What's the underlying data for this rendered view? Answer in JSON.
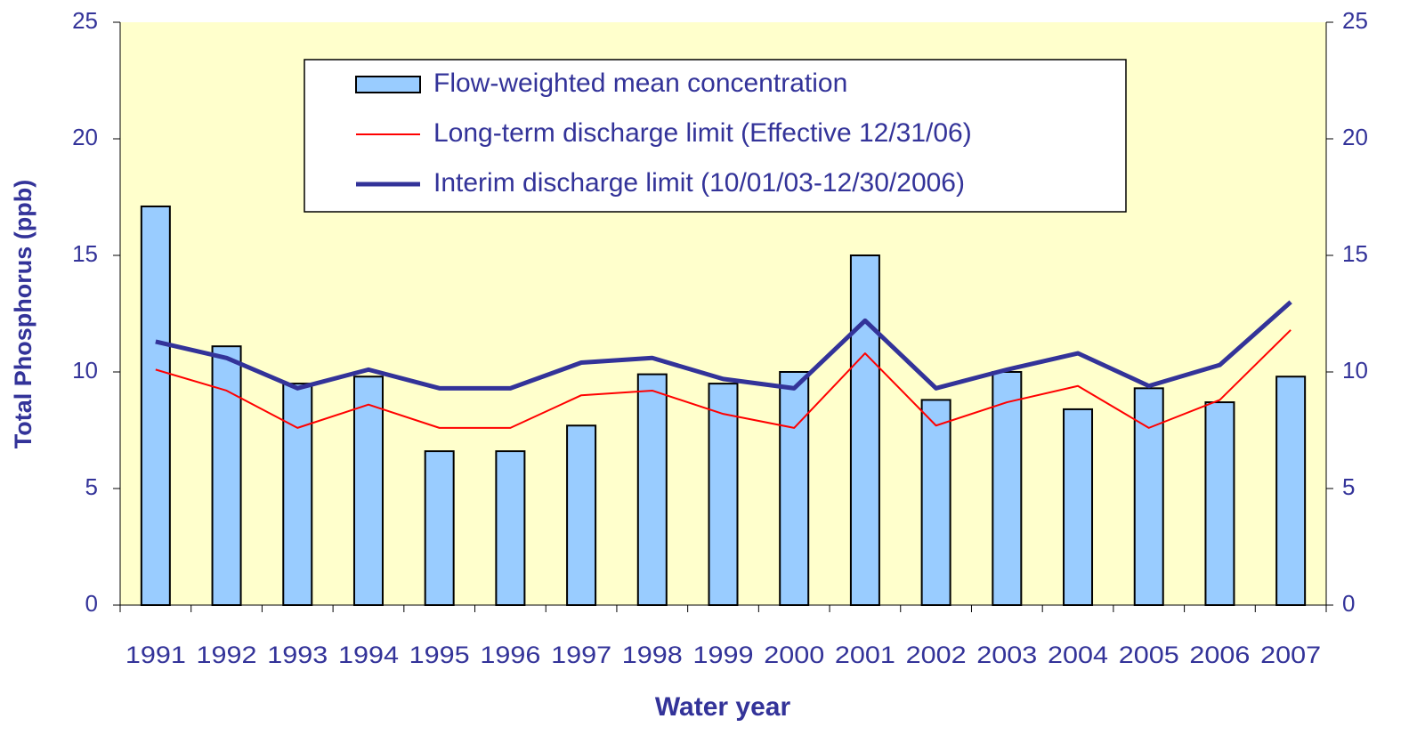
{
  "chart_data": {
    "type": "bar-line",
    "y_label": "Total Phosphorus (ppb)",
    "x_label": "Water year",
    "categories": [
      "1991",
      "1992",
      "1993",
      "1994",
      "1995",
      "1996",
      "1997",
      "1998",
      "1999",
      "2000",
      "2001",
      "2002",
      "2003",
      "2004",
      "2005",
      "2006",
      "2007"
    ],
    "series": [
      {
        "name": "Flow-weighted mean concentration",
        "type": "bar",
        "color": "#99ccff",
        "values": [
          17.1,
          11.1,
          9.5,
          9.8,
          6.6,
          6.6,
          7.7,
          9.9,
          9.5,
          10.0,
          15.0,
          8.8,
          10.0,
          8.4,
          9.3,
          8.7,
          9.8
        ]
      },
      {
        "name": "Long-term discharge limit (Effective 12/31/06)",
        "type": "line",
        "color": "#ff0000",
        "width": 2,
        "values": [
          10.1,
          9.2,
          7.6,
          8.6,
          7.6,
          7.6,
          9.0,
          9.2,
          8.2,
          7.6,
          10.8,
          7.7,
          8.7,
          9.4,
          7.6,
          8.8,
          11.8
        ]
      },
      {
        "name": "Interim discharge limit (10/01/03-12/30/2006)",
        "type": "line",
        "color": "#333399",
        "width": 5,
        "values": [
          11.3,
          10.6,
          9.3,
          10.1,
          9.3,
          9.3,
          10.4,
          10.6,
          9.7,
          9.3,
          12.2,
          9.3,
          10.1,
          10.8,
          9.4,
          10.3,
          13.0
        ]
      }
    ],
    "ylim": [
      0,
      25
    ],
    "yticks": [
      0,
      5,
      10,
      15,
      20,
      25
    ],
    "y2lim": [
      0,
      25
    ],
    "y2ticks": [
      0,
      5,
      10,
      15,
      20,
      25
    ],
    "background": "#ffffcc"
  }
}
